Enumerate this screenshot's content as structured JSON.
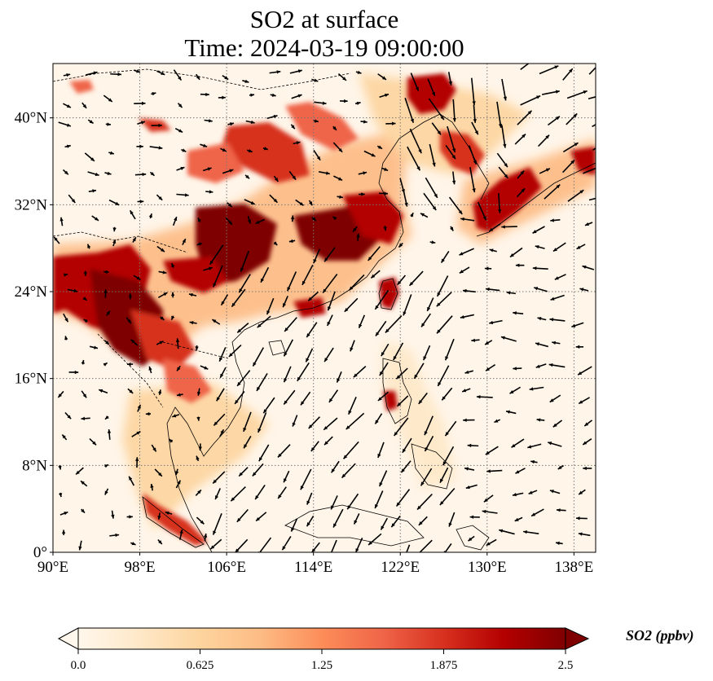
{
  "title": {
    "line1": "SO2 at surface",
    "line2": "Time: 2024-03-19 09:00:00"
  },
  "map": {
    "region": "East and Southeast Asia",
    "variable": "SO2",
    "level": "surface",
    "overlay": "wind vectors",
    "lon_range": [
      90,
      140
    ],
    "lat_range": [
      0,
      45
    ],
    "lon_ticks": [
      {
        "value": 90,
        "label": "90°E"
      },
      {
        "value": 98,
        "label": "98°E"
      },
      {
        "value": 106,
        "label": "106°E"
      },
      {
        "value": 114,
        "label": "114°E"
      },
      {
        "value": 122,
        "label": "122°E"
      },
      {
        "value": 130,
        "label": "130°E"
      },
      {
        "value": 138,
        "label": "138°E"
      }
    ],
    "lat_ticks": [
      {
        "value": 0,
        "label": "0°"
      },
      {
        "value": 8,
        "label": "8°N"
      },
      {
        "value": 16,
        "label": "16°N"
      },
      {
        "value": 24,
        "label": "24°N"
      },
      {
        "value": 32,
        "label": "32°N"
      },
      {
        "value": 40,
        "label": "40°N"
      }
    ],
    "gridlines": true
  },
  "colorbar": {
    "label": "SO2 (ppbv)",
    "ticks": [
      "0.0",
      "0.625",
      "1.25",
      "1.875",
      "2.5"
    ],
    "min": 0,
    "max": 2.5,
    "colormap": [
      "#fff7ec",
      "#fee8c8",
      "#fdd49e",
      "#fdbb84",
      "#fc8d59",
      "#ef6548",
      "#d7301f",
      "#b30000",
      "#7f0000"
    ],
    "extend": "both"
  }
}
